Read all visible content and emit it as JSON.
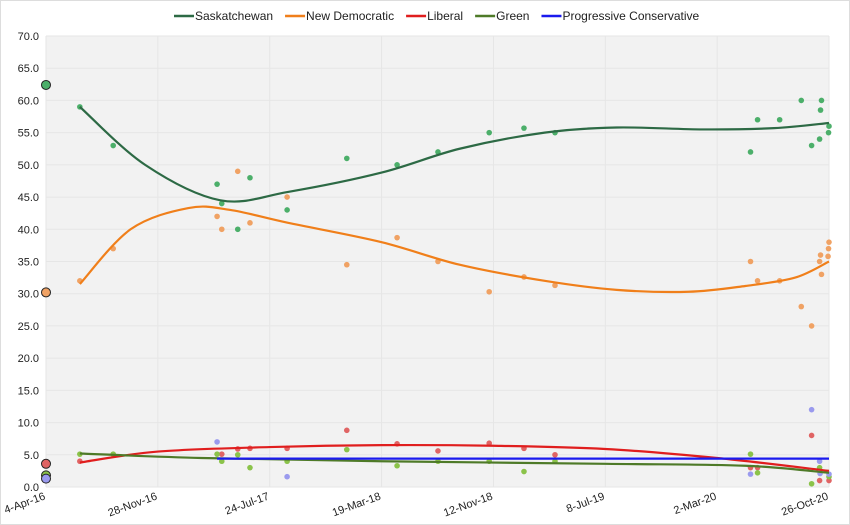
{
  "chart_data": {
    "type": "scatter",
    "title": "",
    "xlabel": "",
    "ylabel": "",
    "ylim": [
      0,
      70
    ],
    "yticks": [
      "0.0",
      "5.0",
      "10.0",
      "15.0",
      "20.0",
      "25.0",
      "30.0",
      "35.0",
      "40.0",
      "45.0",
      "50.0",
      "55.0",
      "60.0",
      "65.0",
      "70.0"
    ],
    "xlim": [
      "2016-04-04",
      "2020-10-26"
    ],
    "xticks": [
      {
        "date": "2016-04-04",
        "label": "4-Apr-16"
      },
      {
        "date": "2016-11-28",
        "label": "28-Nov-16"
      },
      {
        "date": "2017-07-24",
        "label": "24-Jul-17"
      },
      {
        "date": "2018-03-19",
        "label": "19-Mar-18"
      },
      {
        "date": "2018-11-12",
        "label": "12-Nov-18"
      },
      {
        "date": "2019-07-08",
        "label": "8-Jul-19"
      },
      {
        "date": "2020-03-02",
        "label": "2-Mar-20"
      },
      {
        "date": "2020-10-26",
        "label": "26-Oct-20"
      }
    ],
    "grid": true,
    "legend_position": "top",
    "election_2016": {
      "date": "2016-04-04",
      "values": [
        62.4,
        30.2,
        3.6,
        1.8,
        1.3
      ]
    },
    "series": [
      {
        "name": "Saskatchewan",
        "line_color": "#2d6a45",
        "point_color": "#4caf6a",
        "trend": [
          [
            "2016-06-15",
            59
          ],
          [
            "2016-11-01",
            50
          ],
          [
            "2017-04-10",
            44.5
          ],
          [
            "2017-09-01",
            45.8
          ],
          [
            "2018-03-19",
            48.8
          ],
          [
            "2018-09-01",
            52.5
          ],
          [
            "2019-03-01",
            55
          ],
          [
            "2019-08-01",
            55.8
          ],
          [
            "2020-02-01",
            55.5
          ],
          [
            "2020-07-01",
            55.7
          ],
          [
            "2020-10-26",
            56.5
          ]
        ],
        "points": [
          [
            "2016-06-15",
            59
          ],
          [
            "2016-08-25",
            53
          ],
          [
            "2017-04-03",
            47
          ],
          [
            "2017-04-13",
            44
          ],
          [
            "2017-05-17",
            40
          ],
          [
            "2017-06-12",
            48
          ],
          [
            "2017-08-30",
            43
          ],
          [
            "2018-01-04",
            51
          ],
          [
            "2018-04-21",
            50
          ],
          [
            "2018-07-17",
            52
          ],
          [
            "2018-11-03",
            55
          ],
          [
            "2019-01-16",
            55.7
          ],
          [
            "2019-03-23",
            55
          ],
          [
            "2020-05-12",
            52
          ],
          [
            "2020-05-27",
            57
          ],
          [
            "2020-07-13",
            57
          ],
          [
            "2020-08-28",
            60
          ],
          [
            "2020-09-19",
            53
          ],
          [
            "2020-10-06",
            54
          ],
          [
            "2020-10-10",
            60
          ],
          [
            "2020-10-08",
            58.5
          ],
          [
            "2020-10-25",
            55
          ],
          [
            "2020-10-26",
            56
          ]
        ]
      },
      {
        "name": "New Democratic",
        "line_color": "#f07f1a",
        "point_color": "#f0a264",
        "trend": [
          [
            "2016-06-15",
            31.5
          ],
          [
            "2016-10-01",
            40
          ],
          [
            "2017-02-01",
            43.3
          ],
          [
            "2017-05-01",
            43
          ],
          [
            "2017-09-01",
            41
          ],
          [
            "2018-03-19",
            38
          ],
          [
            "2018-09-01",
            34.5
          ],
          [
            "2019-03-01",
            32
          ],
          [
            "2019-08-01",
            30.6
          ],
          [
            "2020-01-01",
            30.3
          ],
          [
            "2020-05-01",
            31.2
          ],
          [
            "2020-08-15",
            32.5
          ],
          [
            "2020-10-26",
            35
          ]
        ],
        "points": [
          [
            "2016-06-15",
            32
          ],
          [
            "2016-08-25",
            37
          ],
          [
            "2017-04-03",
            42
          ],
          [
            "2017-04-13",
            40
          ],
          [
            "2017-05-17",
            49
          ],
          [
            "2017-06-12",
            41
          ],
          [
            "2017-08-30",
            45
          ],
          [
            "2018-01-04",
            34.5
          ],
          [
            "2018-04-21",
            38.7
          ],
          [
            "2018-07-17",
            35
          ],
          [
            "2018-11-03",
            30.3
          ],
          [
            "2019-01-16",
            32.6
          ],
          [
            "2019-03-23",
            31.3
          ],
          [
            "2020-05-12",
            35
          ],
          [
            "2020-05-27",
            32
          ],
          [
            "2020-07-13",
            32
          ],
          [
            "2020-08-28",
            28
          ],
          [
            "2020-09-19",
            25
          ],
          [
            "2020-10-06",
            35
          ],
          [
            "2020-10-10",
            33
          ],
          [
            "2020-10-08",
            36
          ],
          [
            "2020-10-26",
            38
          ],
          [
            "2020-10-25",
            37
          ],
          [
            "2020-10-24",
            35.8
          ]
        ]
      },
      {
        "name": "Liberal",
        "line_color": "#e01e1e",
        "point_color": "#e06464",
        "trend": [
          [
            "2016-06-15",
            3.8
          ],
          [
            "2016-11-28",
            5.5
          ],
          [
            "2017-07-24",
            6.2
          ],
          [
            "2018-03-19",
            6.5
          ],
          [
            "2018-11-12",
            6.4
          ],
          [
            "2019-07-08",
            5.9
          ],
          [
            "2020-03-02",
            4.5
          ],
          [
            "2020-10-26",
            2.5
          ]
        ],
        "points": [
          [
            "2016-06-15",
            4
          ],
          [
            "2017-04-13",
            5.1
          ],
          [
            "2017-05-17",
            5.9
          ],
          [
            "2017-06-12",
            6
          ],
          [
            "2017-08-30",
            6
          ],
          [
            "2018-01-04",
            8.8
          ],
          [
            "2018-04-21",
            6.7
          ],
          [
            "2018-07-17",
            5.6
          ],
          [
            "2018-11-03",
            6.8
          ],
          [
            "2019-01-16",
            6
          ],
          [
            "2019-03-23",
            5
          ],
          [
            "2020-05-12",
            3
          ],
          [
            "2020-05-27",
            3
          ],
          [
            "2020-09-19",
            8
          ],
          [
            "2020-10-06",
            1
          ],
          [
            "2020-10-26",
            1
          ]
        ]
      },
      {
        "name": "Green",
        "line_color": "#4e7a28",
        "point_color": "#8bc34a",
        "trend": [
          [
            "2016-06-15",
            5.2
          ],
          [
            "2017-03-01",
            4.5
          ],
          [
            "2018-03-19",
            4.0
          ],
          [
            "2019-07-08",
            3.6
          ],
          [
            "2020-05-01",
            3.3
          ],
          [
            "2020-10-26",
            2.2
          ]
        ],
        "points": [
          [
            "2016-06-15",
            5.1
          ],
          [
            "2016-08-25",
            5.1
          ],
          [
            "2017-04-03",
            5.1
          ],
          [
            "2017-04-13",
            4
          ],
          [
            "2017-05-17",
            5
          ],
          [
            "2017-06-12",
            3
          ],
          [
            "2017-08-30",
            4
          ],
          [
            "2018-01-04",
            5.8
          ],
          [
            "2018-04-21",
            3.3
          ],
          [
            "2018-07-17",
            4
          ],
          [
            "2018-11-03",
            4
          ],
          [
            "2019-01-16",
            2.4
          ],
          [
            "2019-03-23",
            4
          ],
          [
            "2020-05-12",
            5.1
          ],
          [
            "2020-05-27",
            2.2
          ],
          [
            "2020-09-19",
            0.5
          ],
          [
            "2020-10-06",
            3
          ],
          [
            "2020-10-26",
            1.6
          ]
        ]
      },
      {
        "name": "Progressive Conservative",
        "line_color": "#1a1aee",
        "point_color": "#9a9aee",
        "trend": [
          [
            "2017-04-03",
            4.4
          ],
          [
            "2020-10-26",
            4.4
          ]
        ],
        "points": [
          [
            "2017-04-03",
            7
          ],
          [
            "2017-08-30",
            1.6
          ],
          [
            "2020-05-12",
            2
          ],
          [
            "2020-09-19",
            12
          ],
          [
            "2020-10-06",
            4
          ],
          [
            "2020-10-07",
            2.1
          ],
          [
            "2020-10-26",
            2
          ]
        ]
      }
    ]
  }
}
